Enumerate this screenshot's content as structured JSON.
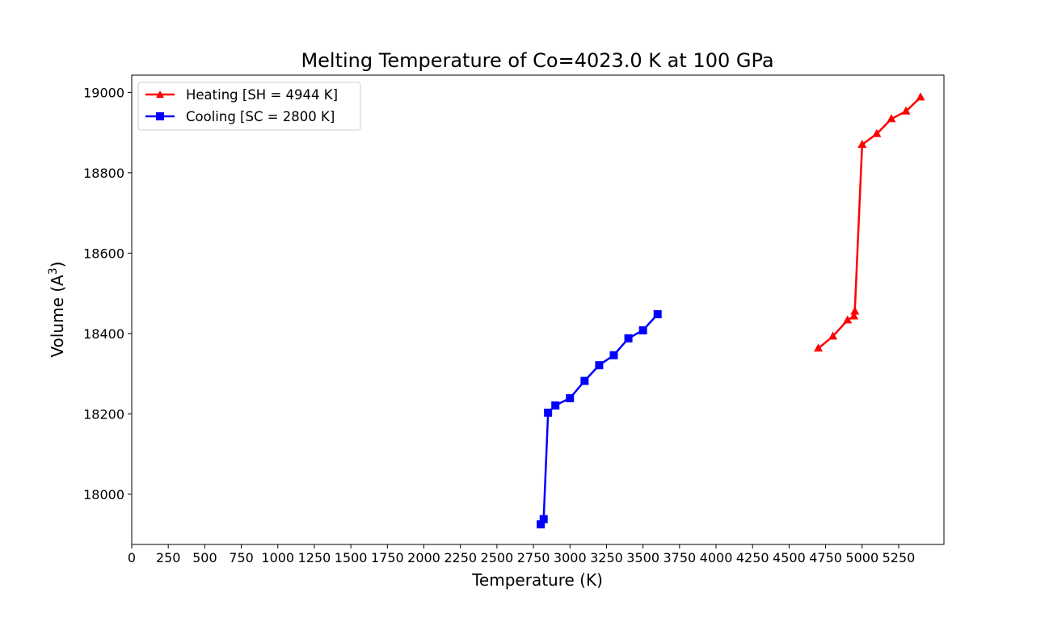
{
  "chart_data": {
    "type": "line",
    "title": "Melting Temperature of Co=4023.0 K at 100 GPa",
    "xlabel": "Temperature (K)",
    "ylabel_main": "Volume (A",
    "ylabel_sup": "3",
    "ylabel_close": ")",
    "xlim": [
      0,
      5560
    ],
    "ylim": [
      17875,
      19043
    ],
    "xticks": [
      0,
      250,
      500,
      750,
      1000,
      1250,
      1500,
      1750,
      2000,
      2250,
      2500,
      2750,
      3000,
      3250,
      3500,
      3750,
      4000,
      4250,
      4500,
      4750,
      5000,
      5250
    ],
    "yticks": [
      18000,
      18200,
      18400,
      18600,
      18800,
      19000
    ],
    "legend_position": "top-left",
    "series": [
      {
        "name": "Heating [SH = 4944 K]",
        "color": "#ff0000",
        "marker": "triangle",
        "x": [
          4700,
          4800,
          4900,
          4944,
          4950,
          5000,
          5100,
          5200,
          5300,
          5400
        ],
        "y": [
          18363,
          18393,
          18433,
          18443,
          18455,
          18870,
          18897,
          18934,
          18953,
          18988
        ]
      },
      {
        "name": "Cooling [SC = 2800 K]",
        "color": "#0000ff",
        "marker": "square",
        "x": [
          2800,
          2820,
          2850,
          2900,
          3000,
          3100,
          3200,
          3300,
          3400,
          3500,
          3600
        ],
        "y": [
          17925,
          17938,
          18203,
          18221,
          18239,
          18282,
          18321,
          18346,
          18388,
          18408,
          18448
        ]
      }
    ]
  }
}
